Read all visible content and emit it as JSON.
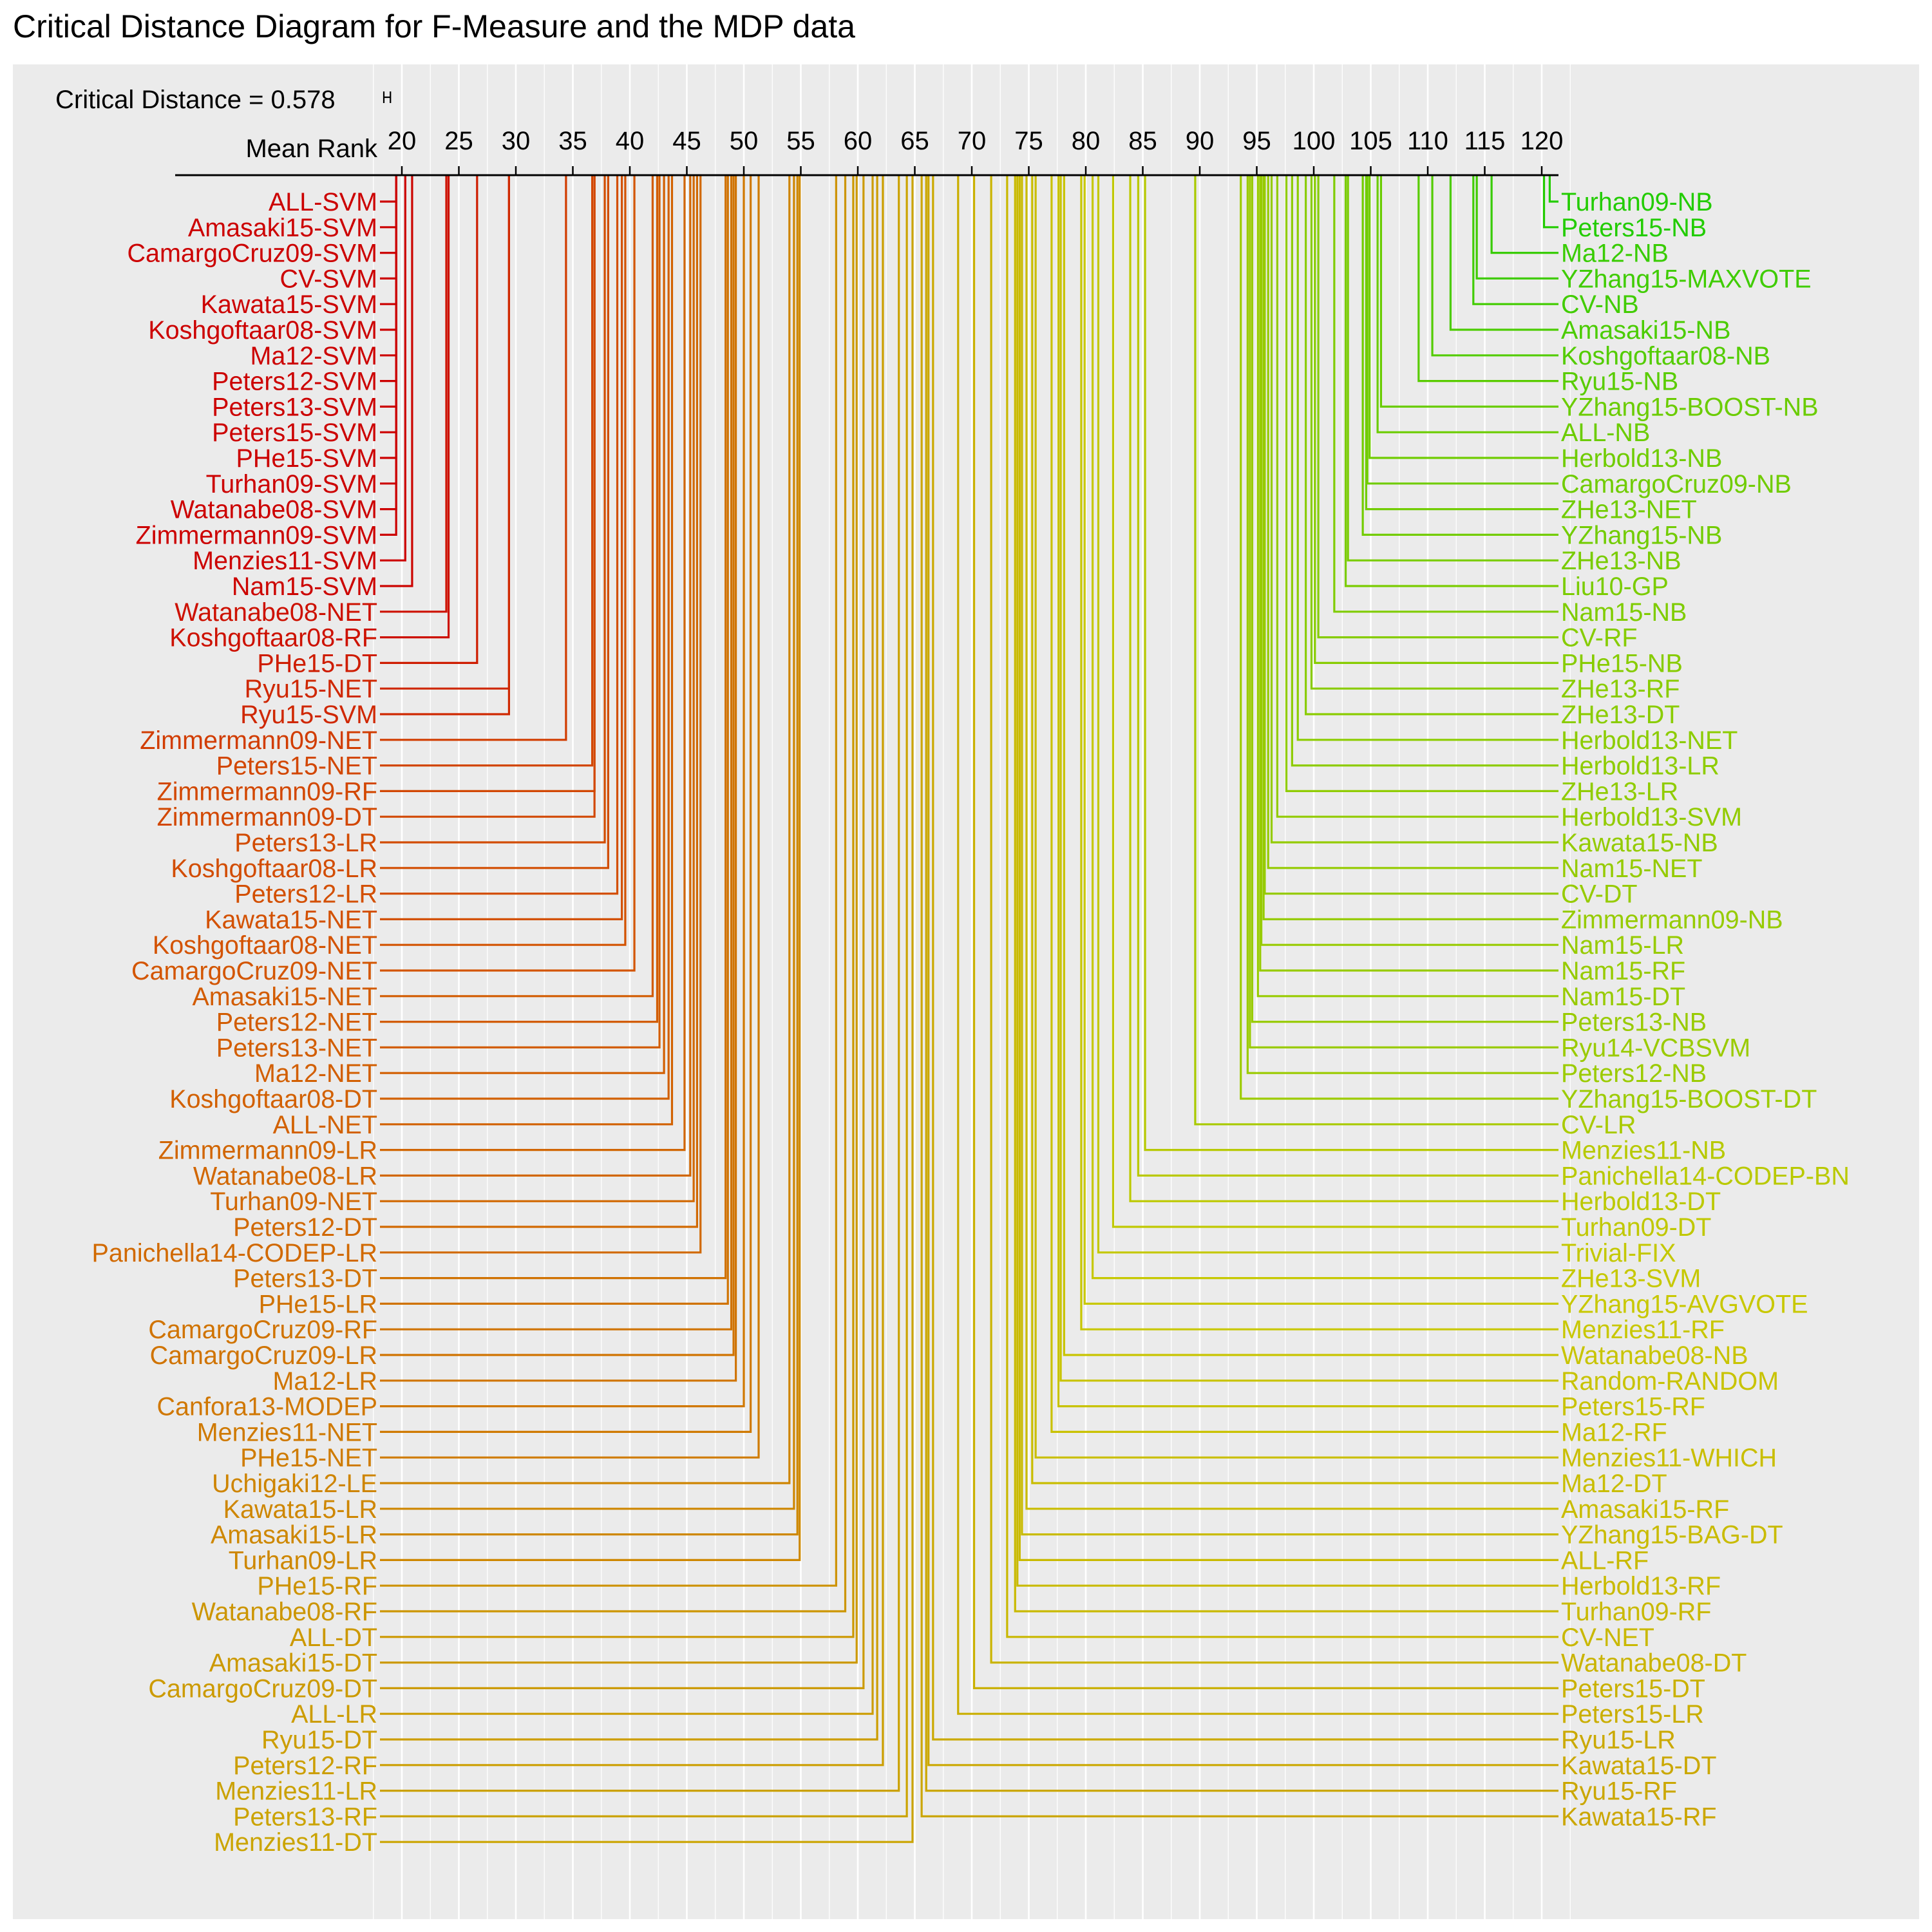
{
  "chart_data": {
    "type": "critical-distance-diagram",
    "title": "Critical Distance Diagram for F-Measure and the MDP data",
    "critical_distance_label": "Critical Distance = 0.578",
    "critical_distance": 0.578,
    "axis_label": "Mean Rank",
    "axis_ticks": [
      20,
      25,
      30,
      35,
      40,
      45,
      50,
      55,
      60,
      65,
      70,
      75,
      80,
      85,
      90,
      95,
      100,
      105,
      110,
      115,
      120
    ],
    "xlim": [
      18,
      121.5
    ],
    "grid": true,
    "background": "#ebebeb",
    "gridline_color": "#ffffff",
    "color_scale": [
      "#cc0000",
      "#d35400",
      "#cc9900",
      "#c8c800",
      "#88cc00",
      "#22cc00"
    ],
    "left_side": [
      {
        "label": "ALL-SVM",
        "rank": 19.5
      },
      {
        "label": "Amasaki15-SVM",
        "rank": 19.5
      },
      {
        "label": "CamargoCruz09-SVM",
        "rank": 19.5
      },
      {
        "label": "CV-SVM",
        "rank": 19.5
      },
      {
        "label": "Kawata15-SVM",
        "rank": 19.5
      },
      {
        "label": "Koshgoftaar08-SVM",
        "rank": 19.5
      },
      {
        "label": "Ma12-SVM",
        "rank": 19.5
      },
      {
        "label": "Peters12-SVM",
        "rank": 19.5
      },
      {
        "label": "Peters13-SVM",
        "rank": 19.5
      },
      {
        "label": "Peters15-SVM",
        "rank": 19.5
      },
      {
        "label": "PHe15-SVM",
        "rank": 19.5
      },
      {
        "label": "Turhan09-SVM",
        "rank": 19.5
      },
      {
        "label": "Watanabe08-SVM",
        "rank": 19.5
      },
      {
        "label": "Zimmermann09-SVM",
        "rank": 19.5
      },
      {
        "label": "Menzies11-SVM",
        "rank": 20.3
      },
      {
        "label": "Nam15-SVM",
        "rank": 20.9
      },
      {
        "label": "Watanabe08-NET",
        "rank": 23.9
      },
      {
        "label": "Koshgoftaar08-RF",
        "rank": 24.1
      },
      {
        "label": "PHe15-DT",
        "rank": 26.6
      },
      {
        "label": "Ryu15-NET",
        "rank": 29.4
      },
      {
        "label": "Ryu15-SVM",
        "rank": 29.4
      },
      {
        "label": "Zimmermann09-NET",
        "rank": 34.4
      },
      {
        "label": "Peters15-NET",
        "rank": 36.7
      },
      {
        "label": "Zimmermann09-RF",
        "rank": 36.9
      },
      {
        "label": "Zimmermann09-DT",
        "rank": 36.9
      },
      {
        "label": "Peters13-LR",
        "rank": 37.8
      },
      {
        "label": "Koshgoftaar08-LR",
        "rank": 38.1
      },
      {
        "label": "Peters12-LR",
        "rank": 38.9
      },
      {
        "label": "Kawata15-NET",
        "rank": 39.3
      },
      {
        "label": "Koshgoftaar08-NET",
        "rank": 39.6
      },
      {
        "label": "CamargoCruz09-NET",
        "rank": 40.4
      },
      {
        "label": "Amasaki15-NET",
        "rank": 42.0
      },
      {
        "label": "Peters12-NET",
        "rank": 42.4
      },
      {
        "label": "Peters13-NET",
        "rank": 42.6
      },
      {
        "label": "Ma12-NET",
        "rank": 43.0
      },
      {
        "label": "Koshgoftaar08-DT",
        "rank": 43.4
      },
      {
        "label": "ALL-NET",
        "rank": 43.7
      },
      {
        "label": "Zimmermann09-LR",
        "rank": 44.8
      },
      {
        "label": "Watanabe08-LR",
        "rank": 45.3
      },
      {
        "label": "Turhan09-NET",
        "rank": 45.6
      },
      {
        "label": "Peters12-DT",
        "rank": 45.9
      },
      {
        "label": "Panichella14-CODEP-LR",
        "rank": 46.2
      },
      {
        "label": "Peters13-DT",
        "rank": 48.4
      },
      {
        "label": "PHe15-LR",
        "rank": 48.6
      },
      {
        "label": "CamargoCruz09-RF",
        "rank": 48.9
      },
      {
        "label": "CamargoCruz09-LR",
        "rank": 49.1
      },
      {
        "label": "Ma12-LR",
        "rank": 49.3
      },
      {
        "label": "Canfora13-MODEP",
        "rank": 50.0
      },
      {
        "label": "Menzies11-NET",
        "rank": 50.6
      },
      {
        "label": "PHe15-NET",
        "rank": 51.3
      },
      {
        "label": "Uchigaki12-LE",
        "rank": 54.0
      },
      {
        "label": "Kawata15-LR",
        "rank": 54.4
      },
      {
        "label": "Amasaki15-LR",
        "rank": 54.7
      },
      {
        "label": "Turhan09-LR",
        "rank": 54.9
      },
      {
        "label": "PHe15-RF",
        "rank": 58.1
      },
      {
        "label": "Watanabe08-RF",
        "rank": 58.9
      },
      {
        "label": "ALL-DT",
        "rank": 59.6
      },
      {
        "label": "Amasaki15-DT",
        "rank": 59.9
      },
      {
        "label": "CamargoCruz09-DT",
        "rank": 60.5
      },
      {
        "label": "ALL-LR",
        "rank": 61.3
      },
      {
        "label": "Ryu15-DT",
        "rank": 61.7
      },
      {
        "label": "Peters12-RF",
        "rank": 62.2
      },
      {
        "label": "Menzies11-LR",
        "rank": 63.6
      },
      {
        "label": "Peters13-RF",
        "rank": 64.3
      },
      {
        "label": "Menzies11-DT",
        "rank": 64.8
      }
    ],
    "right_side": [
      {
        "label": "Turhan09-NB",
        "rank": 120.7
      },
      {
        "label": "Peters15-NB",
        "rank": 120.2
      },
      {
        "label": "Ma12-NB",
        "rank": 115.6
      },
      {
        "label": "YZhang15-MAXVOTE",
        "rank": 114.3
      },
      {
        "label": "CV-NB",
        "rank": 114.0
      },
      {
        "label": "Amasaki15-NB",
        "rank": 112.0
      },
      {
        "label": "Koshgoftaar08-NB",
        "rank": 110.4
      },
      {
        "label": "Ryu15-NB",
        "rank": 109.2
      },
      {
        "label": "YZhang15-BOOST-NB",
        "rank": 105.9
      },
      {
        "label": "ALL-NB",
        "rank": 105.6
      },
      {
        "label": "Herbold13-NB",
        "rank": 104.9
      },
      {
        "label": "CamargoCruz09-NB",
        "rank": 104.7
      },
      {
        "label": "ZHe13-NET",
        "rank": 104.6
      },
      {
        "label": "YZhang15-NB",
        "rank": 104.3
      },
      {
        "label": "ZHe13-NB",
        "rank": 103.0
      },
      {
        "label": "Liu10-GP",
        "rank": 102.8
      },
      {
        "label": "Nam15-NB",
        "rank": 101.8
      },
      {
        "label": "CV-RF",
        "rank": 100.4
      },
      {
        "label": "PHe15-NB",
        "rank": 100.1
      },
      {
        "label": "ZHe13-RF",
        "rank": 99.8
      },
      {
        "label": "ZHe13-DT",
        "rank": 99.3
      },
      {
        "label": "Herbold13-NET",
        "rank": 98.6
      },
      {
        "label": "Herbold13-LR",
        "rank": 98.1
      },
      {
        "label": "ZHe13-LR",
        "rank": 97.6
      },
      {
        "label": "Herbold13-SVM",
        "rank": 96.8
      },
      {
        "label": "Kawata15-NB",
        "rank": 96.3
      },
      {
        "label": "Nam15-NET",
        "rank": 96.0
      },
      {
        "label": "CV-DT",
        "rank": 95.7
      },
      {
        "label": "Zimmermann09-NB",
        "rank": 95.6
      },
      {
        "label": "Nam15-LR",
        "rank": 95.4
      },
      {
        "label": "Nam15-RF",
        "rank": 95.3
      },
      {
        "label": "Nam15-DT",
        "rank": 95.1
      },
      {
        "label": "Peters13-NB",
        "rank": 94.6
      },
      {
        "label": "Ryu14-VCBSVM",
        "rank": 94.4
      },
      {
        "label": "Peters12-NB",
        "rank": 94.2
      },
      {
        "label": "YZhang15-BOOST-DT",
        "rank": 93.6
      },
      {
        "label": "CV-LR",
        "rank": 89.6
      },
      {
        "label": "Menzies11-NB",
        "rank": 85.2
      },
      {
        "label": "Panichella14-CODEP-BN",
        "rank": 84.6
      },
      {
        "label": "Herbold13-DT",
        "rank": 83.9
      },
      {
        "label": "Turhan09-DT",
        "rank": 82.4
      },
      {
        "label": "Trivial-FIX",
        "rank": 81.1
      },
      {
        "label": "ZHe13-SVM",
        "rank": 80.6
      },
      {
        "label": "YZhang15-AVGVOTE",
        "rank": 79.9
      },
      {
        "label": "Menzies11-RF",
        "rank": 79.6
      },
      {
        "label": "Watanabe08-NB",
        "rank": 78.1
      },
      {
        "label": "Random-RANDOM",
        "rank": 77.8
      },
      {
        "label": "Peters15-RF",
        "rank": 77.6
      },
      {
        "label": "Ma12-RF",
        "rank": 77.0
      },
      {
        "label": "Menzies11-WHICH",
        "rank": 75.6
      },
      {
        "label": "Ma12-DT",
        "rank": 75.3
      },
      {
        "label": "Amasaki15-RF",
        "rank": 74.8
      },
      {
        "label": "YZhang15-BAG-DT",
        "rank": 74.4
      },
      {
        "label": "ALL-RF",
        "rank": 74.2
      },
      {
        "label": "Herbold13-RF",
        "rank": 74.0
      },
      {
        "label": "Turhan09-RF",
        "rank": 73.8
      },
      {
        "label": "CV-NET",
        "rank": 73.1
      },
      {
        "label": "Watanabe08-DT",
        "rank": 71.7
      },
      {
        "label": "Peters15-DT",
        "rank": 70.2
      },
      {
        "label": "Peters15-LR",
        "rank": 68.8
      },
      {
        "label": "Ryu15-LR",
        "rank": 66.6
      },
      {
        "label": "Kawata15-DT",
        "rank": 66.2
      },
      {
        "label": "Ryu15-RF",
        "rank": 66.0
      },
      {
        "label": "Kawata15-RF",
        "rank": 65.6
      }
    ]
  }
}
